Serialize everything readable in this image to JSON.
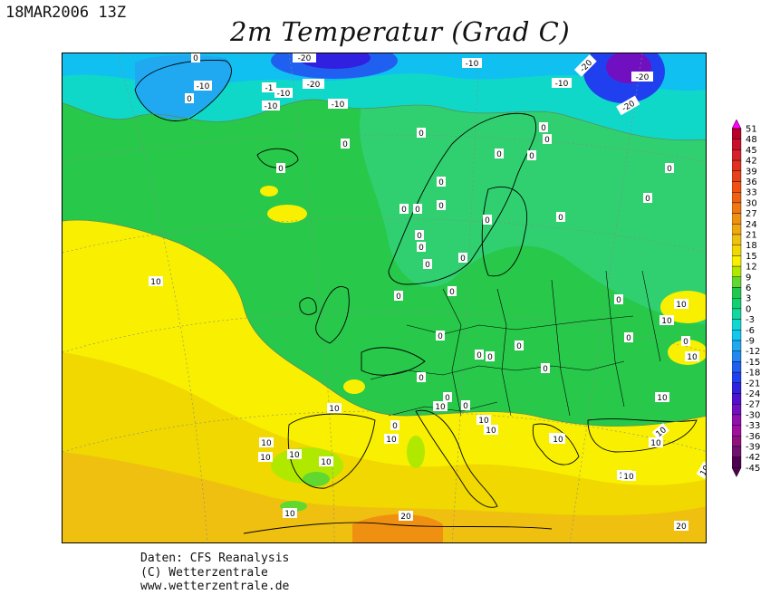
{
  "header": {
    "datetime": "18MAR2006 13Z",
    "title": "2m Temperatur (Grad C)"
  },
  "footer": {
    "line1": "Daten: CFS Reanalysis",
    "line2": "(C) Wetterzentrale",
    "line3": "www.wetterzentrale.de"
  },
  "legend": {
    "values": [
      "51",
      "48",
      "45",
      "42",
      "39",
      "36",
      "33",
      "30",
      "27",
      "24",
      "21",
      "18",
      "15",
      "12",
      "9",
      "6",
      "3",
      "0",
      "-3",
      "-6",
      "-9",
      "-12",
      "-15",
      "-18",
      "-21",
      "-24",
      "-27",
      "-30",
      "-33",
      "-36",
      "-39",
      "-42",
      "-45"
    ],
    "colors": [
      "#ff00ff",
      "#b8002a",
      "#c8102a",
      "#d8202a",
      "#e03020",
      "#e84018",
      "#f05010",
      "#f06010",
      "#f07810",
      "#f09010",
      "#f0a810",
      "#f0c010",
      "#f0d800",
      "#f8f000",
      "#b0e800",
      "#60d830",
      "#20c850",
      "#10d070",
      "#10d8a0",
      "#10d8d0",
      "#10c8f0",
      "#20a8f0",
      "#2088f0",
      "#2060f0",
      "#2040f0",
      "#3020e0",
      "#5010d0",
      "#7010c0",
      "#9010b0",
      "#a010a0",
      "#901080",
      "#701070",
      "#500050"
    ]
  },
  "map": {
    "contour_labels": [
      "-20",
      "-10",
      "-1",
      "-10",
      "-20",
      "-10",
      "-10",
      "-10",
      "-20",
      "-20",
      "-20",
      "-10",
      "0",
      "0",
      "0",
      "0",
      "0",
      "0",
      "0",
      "0",
      "0",
      "0",
      "0",
      "0",
      "0",
      "0",
      "0",
      "0",
      "0",
      "0",
      "0",
      "0",
      "0",
      "0",
      "0",
      "0",
      "0",
      "0",
      "0",
      "0",
      "0",
      "0",
      "0",
      "0",
      "0",
      "0",
      "0",
      "10",
      "10",
      "10",
      "10",
      "10",
      "10",
      "10",
      "10",
      "10",
      "10",
      "10",
      "10",
      "10",
      "10",
      "10",
      "10",
      "10",
      "10",
      "10",
      "10",
      "10",
      "10",
      "20",
      "20"
    ]
  }
}
